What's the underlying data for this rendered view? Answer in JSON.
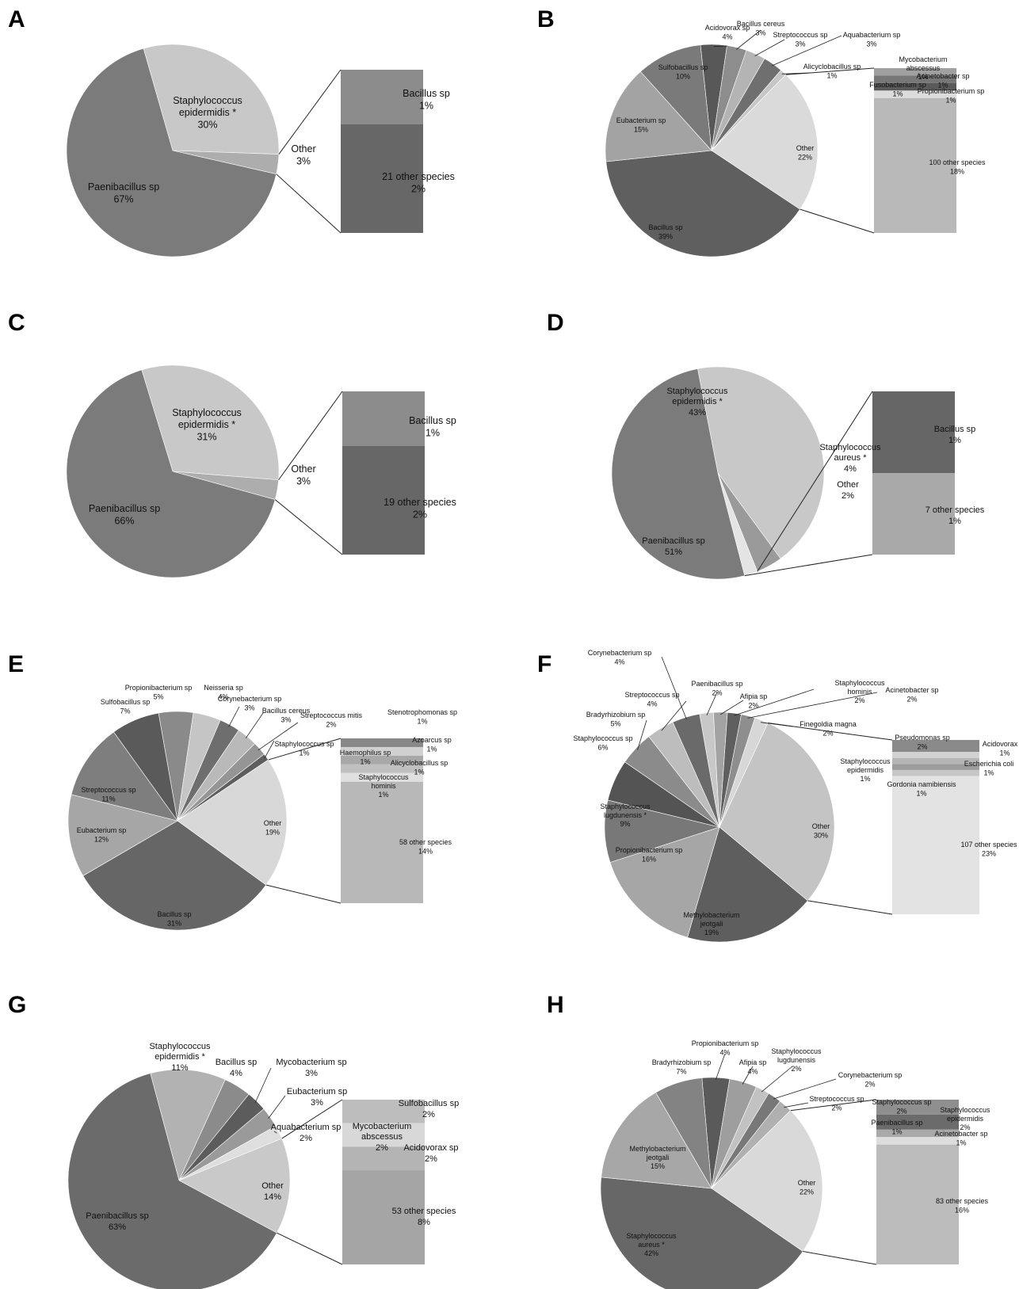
{
  "chart_data": [
    {
      "panel": "A",
      "type": "pie",
      "slices": [
        {
          "label": "Staphylococcus epidermidis *",
          "value": 30,
          "pct": "30%",
          "color": "#c8c8c8"
        },
        {
          "label": "Other",
          "value": 3,
          "pct": "3%",
          "color": "#adadad"
        },
        {
          "label": "Paenibacillus sp",
          "value": 67,
          "pct": "67%",
          "color": "#7b7b7b"
        }
      ],
      "other_breakdown": [
        {
          "label": "Bacillus sp",
          "value": 1,
          "pct": "1%",
          "color": "#8c8c8c"
        },
        {
          "label": "21 other species",
          "value": 2,
          "pct": "2%",
          "color": "#676767"
        }
      ]
    },
    {
      "panel": "B",
      "type": "pie",
      "slices": [
        {
          "label": "Acidovorax sp",
          "value": 4,
          "pct": "4%",
          "color": "#585858"
        },
        {
          "label": "Bacillus cereus",
          "value": 3,
          "pct": "3%",
          "color": "#8d8d8d"
        },
        {
          "label": "Streptococcus sp",
          "value": 3,
          "pct": "3%",
          "color": "#b4b4b4"
        },
        {
          "label": "Aquabacterium sp",
          "value": 3,
          "pct": "3%",
          "color": "#6f6f6f"
        },
        {
          "label": "Alicyclobacillus sp",
          "value": 1,
          "pct": "1%",
          "color": "#c6c6c6"
        },
        {
          "label": "Other",
          "value": 22,
          "pct": "22%",
          "color": "#dadada"
        },
        {
          "label": "Bacillus sp",
          "value": 39,
          "pct": "39%",
          "color": "#5f5f5f"
        },
        {
          "label": "Eubacterium sp",
          "value": 15,
          "pct": "15%",
          "color": "#a3a3a3"
        },
        {
          "label": "Sulfobacillus sp",
          "value": 10,
          "pct": "10%",
          "color": "#7a7a7a"
        }
      ],
      "other_breakdown": [
        {
          "label": "Mycobacterium abscessus",
          "value": 1,
          "pct": "1%",
          "color": "#a0a0a0"
        },
        {
          "label": "Acinetobacter sp",
          "value": 1,
          "pct": "1%",
          "color": "#777777"
        },
        {
          "label": "Fusobacterium sp",
          "value": 1,
          "pct": "1%",
          "color": "#5a5a5a"
        },
        {
          "label": "Propionibacterium sp",
          "value": 1,
          "pct": "1%",
          "color": "#dcdcdc"
        },
        {
          "label": "100 other species",
          "value": 18,
          "pct": "18%",
          "color": "#b9b9b9"
        }
      ]
    },
    {
      "panel": "C",
      "type": "pie",
      "slices": [
        {
          "label": "Staphylococcus epidermidis *",
          "value": 31,
          "pct": "31%",
          "color": "#c8c8c8"
        },
        {
          "label": "Other",
          "value": 3,
          "pct": "3%",
          "color": "#adadad"
        },
        {
          "label": "Paenibacillus sp",
          "value": 66,
          "pct": "66%",
          "color": "#7b7b7b"
        }
      ],
      "other_breakdown": [
        {
          "label": "Bacillus sp",
          "value": 1,
          "pct": "1%",
          "color": "#8c8c8c"
        },
        {
          "label": "19 other species",
          "value": 2,
          "pct": "2%",
          "color": "#676767"
        }
      ]
    },
    {
      "panel": "D",
      "type": "pie",
      "slices": [
        {
          "label": "Staphylococcus epidermidis *",
          "value": 43,
          "pct": "43%",
          "color": "#c8c8c8"
        },
        {
          "label": "Staphylococcus aureus *",
          "value": 4,
          "pct": "4%",
          "color": "#9a9a9a"
        },
        {
          "label": "Other",
          "value": 2,
          "pct": "2%",
          "color": "#e4e4e4"
        },
        {
          "label": "Paenibacillus sp",
          "value": 51,
          "pct": "51%",
          "color": "#7b7b7b"
        }
      ],
      "other_breakdown": [
        {
          "label": "Bacillus sp",
          "value": 1,
          "pct": "1%",
          "color": "#666666"
        },
        {
          "label": "7 other species",
          "value": 1,
          "pct": "1%",
          "color": "#a9a9a9"
        }
      ]
    },
    {
      "panel": "E",
      "type": "pie",
      "slices": [
        {
          "label": "Propionibacterium sp",
          "value": 5,
          "pct": "5%",
          "color": "#8a8a8a"
        },
        {
          "label": "Neisseria sp",
          "value": 4,
          "pct": "4%",
          "color": "#c5c5c5"
        },
        {
          "label": "Corynebacterium sp",
          "value": 3,
          "pct": "3%",
          "color": "#6e6e6e"
        },
        {
          "label": "Bacillus cereus",
          "value": 3,
          "pct": "3%",
          "color": "#b9b9b9"
        },
        {
          "label": "Streptococcus mitis",
          "value": 2,
          "pct": "2%",
          "color": "#959595"
        },
        {
          "label": "Staphylococcus sp",
          "value": 1,
          "pct": "1%",
          "color": "#5e5e5e"
        },
        {
          "label": "Other",
          "value": 19,
          "pct": "19%",
          "color": "#d8d8d8"
        },
        {
          "label": "Bacillus sp",
          "value": 31,
          "pct": "31%",
          "color": "#666666"
        },
        {
          "label": "Eubacterium sp",
          "value": 12,
          "pct": "12%",
          "color": "#a6a6a6"
        },
        {
          "label": "Streptococcus sp",
          "value": 11,
          "pct": "11%",
          "color": "#7e7e7e"
        },
        {
          "label": "Sulfobacillus sp",
          "value": 7,
          "pct": "7%",
          "color": "#5a5a5a"
        }
      ],
      "other_breakdown": [
        {
          "label": "Stenotrophomonas sp",
          "value": 1,
          "pct": "1%",
          "color": "#888888"
        },
        {
          "label": "Azoarcus sp",
          "value": 1,
          "pct": "1%",
          "color": "#d0d0d0"
        },
        {
          "label": "Haemophilus sp",
          "value": 1,
          "pct": "1%",
          "color": "#a8a8a8"
        },
        {
          "label": "Alicyclobacillus sp",
          "value": 1,
          "pct": "1%",
          "color": "#c0c0c0"
        },
        {
          "label": "Staphylococcus hominis",
          "value": 1,
          "pct": "1%",
          "color": "#e0e0e0"
        },
        {
          "label": "58 other species",
          "value": 14,
          "pct": "14%",
          "color": "#b8b8b8"
        }
      ]
    },
    {
      "panel": "F",
      "type": "pie",
      "slices": [
        {
          "label": "Paenibacillus sp",
          "value": 2,
          "pct": "2%",
          "color": "#c8c8c8"
        },
        {
          "label": "Afipia sp",
          "value": 2,
          "pct": "2%",
          "color": "#a3a3a3"
        },
        {
          "label": "Staphylococcus hominis",
          "value": 2,
          "pct": "2%",
          "color": "#5f5f5f"
        },
        {
          "label": "Acinetobacter sp",
          "value": 2,
          "pct": "2%",
          "color": "#8e8e8e"
        },
        {
          "label": "Finegoldia magna",
          "value": 2,
          "pct": "2%",
          "color": "#d7d7d7"
        },
        {
          "label": "Other",
          "value": 30,
          "pct": "30%",
          "color": "#c4c4c4"
        },
        {
          "label": "Methylobacterium jeotgali",
          "value": 19,
          "pct": "19%",
          "color": "#5e5e5e"
        },
        {
          "label": "Propionibacterium sp",
          "value": 16,
          "pct": "16%",
          "color": "#a6a6a6"
        },
        {
          "label": "Staphylococcus lugdunensis *",
          "value": 9,
          "pct": "9%",
          "color": "#787878"
        },
        {
          "label": "Staphylococcus sp",
          "value": 6,
          "pct": "6%",
          "color": "#545454"
        },
        {
          "label": "Bradyrhizobium sp",
          "value": 5,
          "pct": "5%",
          "color": "#8b8b8b"
        },
        {
          "label": "Streptococcus sp",
          "value": 4,
          "pct": "4%",
          "color": "#bdbdbd"
        },
        {
          "label": "Corynebacterium sp",
          "value": 4,
          "pct": "4%",
          "color": "#6a6a6a"
        }
      ],
      "other_breakdown": [
        {
          "label": "Pseudomonas sp",
          "value": 2,
          "pct": "2%",
          "color": "#8a8a8a"
        },
        {
          "label": "Acidovorax sp",
          "value": 1,
          "pct": "1%",
          "color": "#d2d2d2"
        },
        {
          "label": "Staphylococcus epidermidis",
          "value": 1,
          "pct": "1%",
          "color": "#b6b6b6"
        },
        {
          "label": "Escherichia coli",
          "value": 1,
          "pct": "1%",
          "color": "#9d9d9d"
        },
        {
          "label": "Gordonia namibiensis",
          "value": 1,
          "pct": "1%",
          "color": "#c6c6c6"
        },
        {
          "label": "107 other species",
          "value": 23,
          "pct": "23%",
          "color": "#e3e3e3"
        }
      ]
    },
    {
      "panel": "G",
      "type": "pie",
      "slices": [
        {
          "label": "Staphylococcus epidermidis *",
          "value": 11,
          "pct": "11%",
          "color": "#b2b2b2"
        },
        {
          "label": "Bacillus sp",
          "value": 4,
          "pct": "4%",
          "color": "#8b8b8b"
        },
        {
          "label": "Mycobacterium sp",
          "value": 3,
          "pct": "3%",
          "color": "#5c5c5c"
        },
        {
          "label": "Eubacterium sp",
          "value": 3,
          "pct": "3%",
          "color": "#9a9a9a"
        },
        {
          "label": "Aquabacterium sp",
          "value": 2,
          "pct": "2%",
          "color": "#dedede"
        },
        {
          "label": "Other",
          "value": 14,
          "pct": "14%",
          "color": "#c9c9c9"
        },
        {
          "label": "Paenibacillus sp",
          "value": 63,
          "pct": "63%",
          "color": "#6b6b6b"
        }
      ],
      "other_breakdown": [
        {
          "label": "Sulfobacillus sp",
          "value": 2,
          "pct": "2%",
          "color": "#bdbdbd"
        },
        {
          "label": "Mycobacterium abscessus",
          "value": 2,
          "pct": "2%",
          "color": "#d8d8d8"
        },
        {
          "label": "Acidovorax sp",
          "value": 2,
          "pct": "2%",
          "color": "#b4b4b4"
        },
        {
          "label": "53 other species",
          "value": 8,
          "pct": "8%",
          "color": "#a5a5a5"
        }
      ]
    },
    {
      "panel": "H",
      "type": "pie",
      "slices": [
        {
          "label": "Propionibacterium sp",
          "value": 4,
          "pct": "4%",
          "color": "#5a5a5a"
        },
        {
          "label": "Afipia sp",
          "value": 4,
          "pct": "4%",
          "color": "#9e9e9e"
        },
        {
          "label": "Staphylococcus lugdunensis",
          "value": 2,
          "pct": "2%",
          "color": "#c2c2c2"
        },
        {
          "label": "Corynebacterium sp",
          "value": 2,
          "pct": "2%",
          "color": "#787878"
        },
        {
          "label": "Streptococcus sp",
          "value": 2,
          "pct": "2%",
          "color": "#b0b0b0"
        },
        {
          "label": "Other",
          "value": 22,
          "pct": "22%",
          "color": "#d9d9d9"
        },
        {
          "label": "Staphylococcus aureus *",
          "value": 42,
          "pct": "42%",
          "color": "#676767"
        },
        {
          "label": "Methylobacterium jeotgali",
          "value": 15,
          "pct": "15%",
          "color": "#a7a7a7"
        },
        {
          "label": "Bradyrhizobium sp",
          "value": 7,
          "pct": "7%",
          "color": "#838383"
        }
      ],
      "other_breakdown": [
        {
          "label": "Staphylococcus sp",
          "value": 2,
          "pct": "2%",
          "color": "#8f8f8f"
        },
        {
          "label": "Staphylococcus epidermidis",
          "value": 2,
          "pct": "2%",
          "color": "#6b6b6b"
        },
        {
          "label": "Paenibacillus sp",
          "value": 1,
          "pct": "1%",
          "color": "#a9a9a9"
        },
        {
          "label": "Acinetobacter sp",
          "value": 1,
          "pct": "1%",
          "color": "#dddddd"
        },
        {
          "label": "83 other species",
          "value": 16,
          "pct": "16%",
          "color": "#bcbcbc"
        }
      ]
    }
  ]
}
